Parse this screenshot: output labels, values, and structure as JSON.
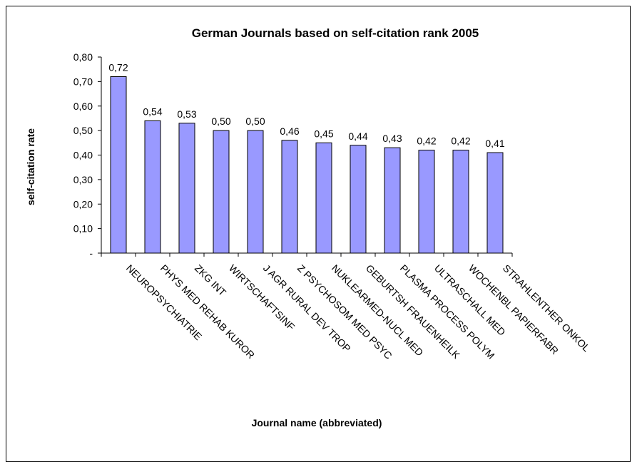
{
  "chart_data": {
    "type": "bar",
    "title": "German Journals based on self-citation rank 2005",
    "xlabel": "Journal name (abbreviated)",
    "ylabel": "self-citation rate",
    "ylim": [
      0,
      0.8
    ],
    "y_ticks": [
      "-",
      "0,10",
      "0,20",
      "0,30",
      "0,40",
      "0,50",
      "0,60",
      "0,70",
      "0,80"
    ],
    "categories": [
      "NEUROPSYCHIATRIE",
      "PHYS MED REHAB KUROR",
      "ZKG INT",
      "WIRTSCHAFTSINF",
      "J AGR RURAL DEV TROP",
      "Z PSYCHOSOM MED PSYC",
      "NUKLEARMED-NUCL MED",
      "GEBURTSH FRAUENHEILK",
      "PLASMA PROCESS POLYM",
      "ULTRASCHALL MED",
      "WOCHENBL PAPIERFABR",
      "STRAHLENTHER ONKOL"
    ],
    "values": [
      0.72,
      0.54,
      0.53,
      0.5,
      0.5,
      0.46,
      0.45,
      0.44,
      0.43,
      0.42,
      0.42,
      0.41
    ],
    "data_labels": [
      "0,72",
      "0,54",
      "0,53",
      "0,50",
      "0,50",
      "0,46",
      "0,45",
      "0,44",
      "0,43",
      "0,42",
      "0,42",
      "0,41"
    ],
    "bar_color": "#9999ff",
    "grid": false,
    "legend": "none"
  }
}
